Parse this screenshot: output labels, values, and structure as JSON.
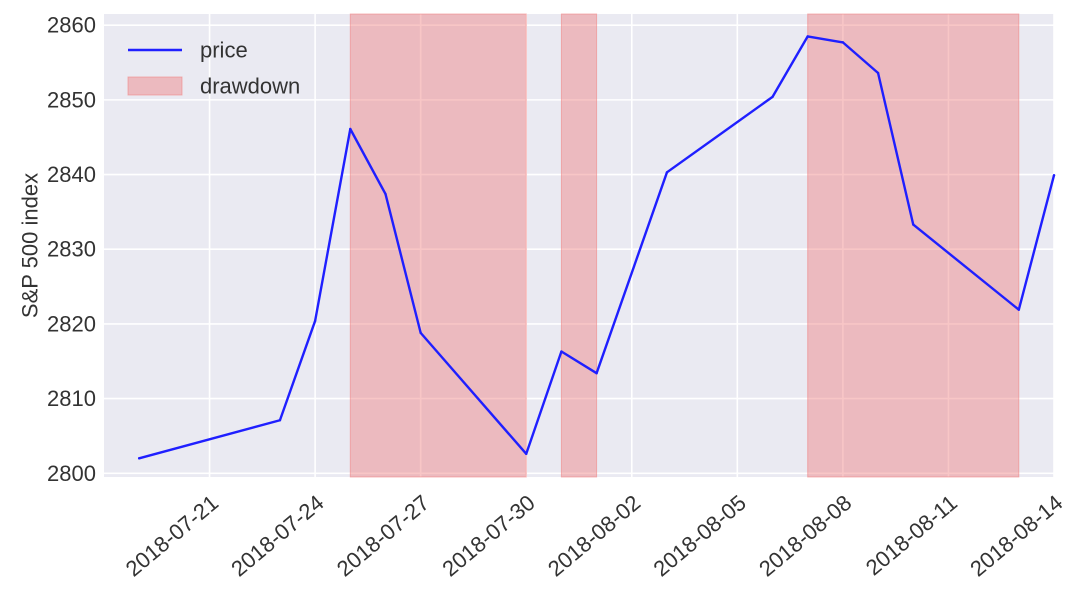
{
  "chart_data": {
    "type": "line",
    "title": "",
    "xlabel": "",
    "ylabel": "S&P 500 index",
    "x_axis_type": "date",
    "xlim": [
      "2018-07-18",
      "2018-08-14"
    ],
    "ylim": [
      2799.5,
      2861.5
    ],
    "grid": true,
    "legend_position": "top-left",
    "xticks": [
      {
        "date": "2018-07-21",
        "label": "2018-07-21"
      },
      {
        "date": "2018-07-24",
        "label": "2018-07-24"
      },
      {
        "date": "2018-07-27",
        "label": "2018-07-27"
      },
      {
        "date": "2018-07-30",
        "label": "2018-07-30"
      },
      {
        "date": "2018-08-02",
        "label": "2018-08-02"
      },
      {
        "date": "2018-08-05",
        "label": "2018-08-05"
      },
      {
        "date": "2018-08-08",
        "label": "2018-08-08"
      },
      {
        "date": "2018-08-11",
        "label": "2018-08-11"
      },
      {
        "date": "2018-08-14",
        "label": "2018-08-14"
      }
    ],
    "yticks": [
      {
        "value": 2800,
        "label": "2800"
      },
      {
        "value": 2810,
        "label": "2810"
      },
      {
        "value": 2820,
        "label": "2820"
      },
      {
        "value": 2830,
        "label": "2830"
      },
      {
        "value": 2840,
        "label": "2840"
      },
      {
        "value": 2850,
        "label": "2850"
      },
      {
        "value": 2860,
        "label": "2860"
      }
    ],
    "series": [
      {
        "name": "price",
        "color": "#1f1fff",
        "points": [
          {
            "x": "2018-07-19",
            "y": 2802.0
          },
          {
            "x": "2018-07-23",
            "y": 2807.1
          },
          {
            "x": "2018-07-24",
            "y": 2820.4
          },
          {
            "x": "2018-07-25",
            "y": 2846.1
          },
          {
            "x": "2018-07-26",
            "y": 2837.4
          },
          {
            "x": "2018-07-27",
            "y": 2818.8
          },
          {
            "x": "2018-07-30",
            "y": 2802.6
          },
          {
            "x": "2018-07-31",
            "y": 2816.3
          },
          {
            "x": "2018-08-01",
            "y": 2813.4
          },
          {
            "x": "2018-08-03",
            "y": 2840.3
          },
          {
            "x": "2018-08-06",
            "y": 2850.4
          },
          {
            "x": "2018-08-07",
            "y": 2858.5
          },
          {
            "x": "2018-08-08",
            "y": 2857.7
          },
          {
            "x": "2018-08-09",
            "y": 2853.6
          },
          {
            "x": "2018-08-10",
            "y": 2833.3
          },
          {
            "x": "2018-08-13",
            "y": 2821.9
          },
          {
            "x": "2018-08-14",
            "y": 2839.9
          }
        ]
      }
    ],
    "drawdown": {
      "name": "drawdown",
      "color": "#f08080",
      "spans": [
        {
          "start": "2018-07-25",
          "end": "2018-07-30"
        },
        {
          "start": "2018-07-31",
          "end": "2018-08-01"
        },
        {
          "start": "2018-08-07",
          "end": "2018-08-13"
        }
      ]
    },
    "legend": [
      {
        "label": "price",
        "kind": "line",
        "color": "#1f1fff"
      },
      {
        "label": "drawdown",
        "kind": "patch",
        "color": "#f08080"
      }
    ],
    "background_color": "#eaeaf2",
    "grid_color": "#ffffff"
  }
}
